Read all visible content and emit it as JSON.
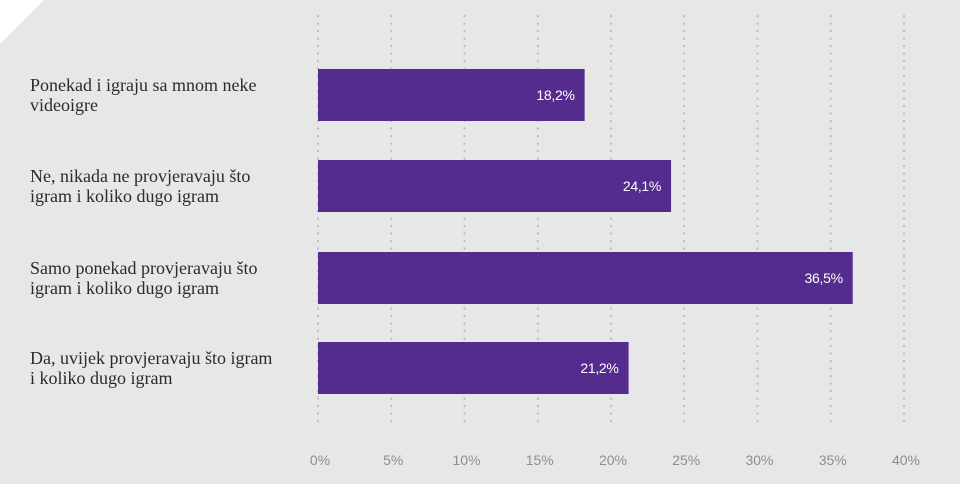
{
  "colors": {
    "background": "#e7e7e8",
    "bar": "#532c8d",
    "grid": "#bdbdc0",
    "corner": "#ffffff",
    "label_text": "#2b2b2b",
    "tick_text": "#8e8e92",
    "value_text": "#ffffff"
  },
  "chart_data": {
    "type": "bar",
    "orientation": "horizontal",
    "title": "",
    "xlabel": "",
    "ylabel": "",
    "grid": true,
    "legend": "none",
    "xlim": [
      0,
      40
    ],
    "ticks": [
      "0%",
      "5%",
      "10%",
      "15%",
      "20%",
      "25%",
      "30%",
      "35%",
      "40%"
    ],
    "tick_values": [
      0,
      5,
      10,
      15,
      20,
      25,
      30,
      35,
      40
    ],
    "categories": [
      [
        "Ponekad i igraju sa mnom neke",
        "videoigre"
      ],
      [
        "Ne, nikada ne provjeravaju što",
        "igram i koliko dugo igram"
      ],
      [
        "Samo ponekad provjeravaju što",
        "igram i koliko dugo igram"
      ],
      [
        "Da, uvijek provjeravaju što igram",
        "i koliko dugo igram"
      ]
    ],
    "values": [
      18.2,
      24.1,
      36.5,
      21.2
    ],
    "value_labels": [
      "18,2%",
      "24,1%",
      "36,5%",
      "21,2%"
    ]
  }
}
